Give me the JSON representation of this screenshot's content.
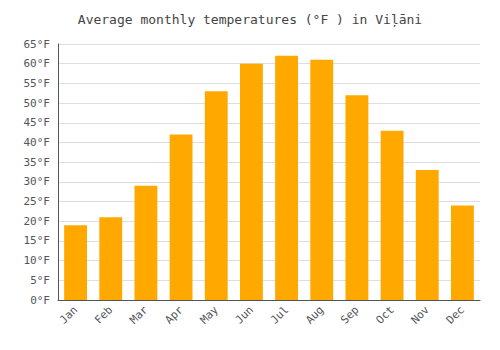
{
  "chart_data": {
    "type": "bar",
    "title": "Average monthly temperatures (°F ) in Viļāni",
    "categories": [
      "Jan",
      "Feb",
      "Mar",
      "Apr",
      "May",
      "Jun",
      "Jul",
      "Aug",
      "Sep",
      "Oct",
      "Nov",
      "Dec"
    ],
    "values": [
      19,
      21,
      29,
      42,
      53,
      60,
      62,
      61,
      52,
      43,
      33,
      24
    ],
    "color": "#FFA800",
    "ylim": [
      0,
      65
    ],
    "yticks": [
      {
        "value": 0,
        "label": "0°F"
      },
      {
        "value": 5,
        "label": "5°F"
      },
      {
        "value": 10,
        "label": "10°F"
      },
      {
        "value": 15,
        "label": "15°F"
      },
      {
        "value": 20,
        "label": "20°F"
      },
      {
        "value": 25,
        "label": "25°F"
      },
      {
        "value": 30,
        "label": "30°F"
      },
      {
        "value": 35,
        "label": "35°F"
      },
      {
        "value": 40,
        "label": "40°F"
      },
      {
        "value": 45,
        "label": "45°F"
      },
      {
        "value": 50,
        "label": "50°F"
      },
      {
        "value": 55,
        "label": "55°F"
      },
      {
        "value": 60,
        "label": "60°F"
      },
      {
        "value": 65,
        "label": "65°F"
      }
    ],
    "grid": true
  }
}
